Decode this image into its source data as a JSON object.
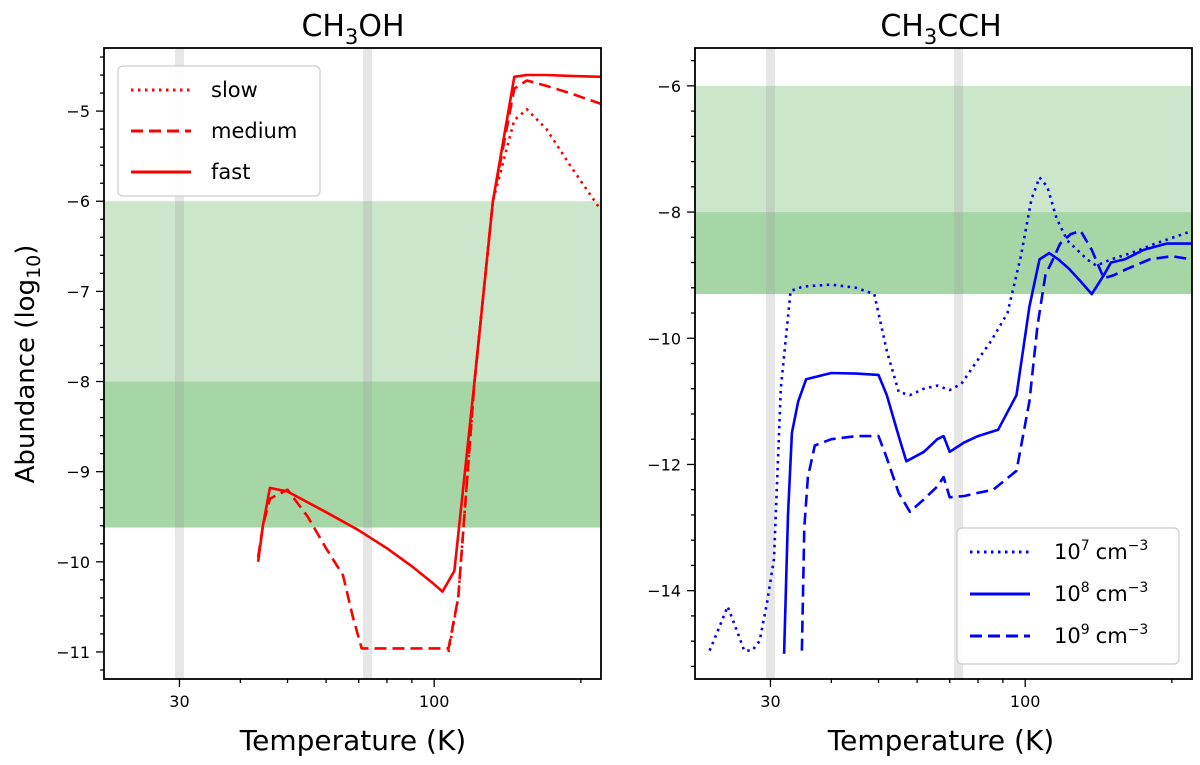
{
  "chart_data": [
    {
      "type": "line",
      "title": "CH3OH",
      "title_parts": [
        "CH",
        "3",
        "OH"
      ],
      "xlabel": "Temperature (K)",
      "ylabel": "Abundance (log",
      "ylabel_sub": "10",
      "ylabel_close": ")",
      "xscale": "log",
      "xlim": [
        21,
        220
      ],
      "ylim": [
        -11.3,
        -4.3
      ],
      "xticks": [
        30,
        100
      ],
      "xtick_labels": [
        "30",
        "100"
      ],
      "yticks": [
        -11,
        -10,
        -9,
        -8,
        -7,
        -6,
        -5
      ],
      "ytick_labels": [
        "−11",
        "−10",
        "−9",
        "−8",
        "−7",
        "−6",
        "−5"
      ],
      "vlines_x": [
        30,
        73
      ],
      "bands": [
        {
          "y0": -8.0,
          "y1": -6.0,
          "color": "#cce6cc"
        },
        {
          "y0": -9.62,
          "y1": -8.0,
          "color": "#a6d6a6"
        }
      ],
      "legend_position": "upper-left",
      "series": [
        {
          "name": "slow",
          "style": "dotted",
          "color": "#ff0000",
          "x": [
            107,
            112,
            121,
            132,
            146,
            155,
            170,
            190,
            220
          ],
          "y": [
            -11.0,
            -10.4,
            -8.0,
            -6.0,
            -5.1,
            -4.98,
            -5.2,
            -5.6,
            -6.1
          ]
        },
        {
          "name": "medium",
          "style": "dashed",
          "color": "#ff0000",
          "x": [
            43.5,
            44.5,
            46,
            50,
            55,
            60,
            65,
            68,
            71,
            107,
            112,
            121,
            132,
            146,
            155,
            170,
            190,
            220
          ],
          "y": [
            -9.95,
            -9.6,
            -9.3,
            -9.2,
            -9.5,
            -9.85,
            -10.15,
            -10.6,
            -10.96,
            -10.96,
            -10.4,
            -8.0,
            -6.0,
            -4.75,
            -4.66,
            -4.72,
            -4.8,
            -4.92
          ]
        },
        {
          "name": "fast",
          "style": "solid",
          "color": "#ff0000",
          "x": [
            43.5,
            44.5,
            46,
            50,
            60,
            70,
            80,
            90,
            100,
            104,
            110,
            121,
            132,
            146,
            155,
            170,
            190,
            220
          ],
          "y": [
            -10.0,
            -9.6,
            -9.18,
            -9.22,
            -9.45,
            -9.65,
            -9.85,
            -10.05,
            -10.25,
            -10.33,
            -10.1,
            -8.0,
            -6.0,
            -4.62,
            -4.6,
            -4.6,
            -4.61,
            -4.62
          ]
        }
      ]
    },
    {
      "type": "line",
      "title": "CH3CCH",
      "title_parts": [
        "CH",
        "3",
        "CCH"
      ],
      "xlabel": "Temperature (K)",
      "xscale": "log",
      "xlim": [
        21,
        220
      ],
      "ylim": [
        -15.4,
        -5.4
      ],
      "xticks": [
        30,
        100
      ],
      "xtick_labels": [
        "30",
        "100"
      ],
      "yticks": [
        -14,
        -12,
        -10,
        -8,
        -6
      ],
      "ytick_labels": [
        "−14",
        "−12",
        "−10",
        "−8",
        "−6"
      ],
      "vlines_x": [
        30,
        73
      ],
      "bands": [
        {
          "y0": -8.0,
          "y1": -6.0,
          "color": "#cce6cc"
        },
        {
          "y0": -9.3,
          "y1": -8.0,
          "color": "#a6d6a6"
        }
      ],
      "legend_position": "lower-right",
      "series": [
        {
          "name": "10^7 cm^-3",
          "label_base": "10",
          "label_exp": "7",
          "label_unit": "cm",
          "label_unit_exp": "−3",
          "style": "dotted",
          "color": "#0000ff",
          "x": [
            22.5,
            23.5,
            24.5,
            25.5,
            26.5,
            27.5,
            28.5,
            29.5,
            30.5,
            31.5,
            33,
            35,
            40,
            45,
            49,
            52,
            55,
            58,
            62,
            66,
            70,
            74,
            79,
            85,
            92,
            98,
            103,
            107,
            111,
            116,
            122,
            128,
            134,
            140,
            150,
            165,
            185,
            220
          ],
          "y": [
            -14.95,
            -14.6,
            -14.25,
            -14.6,
            -14.95,
            -14.95,
            -14.8,
            -14.2,
            -13.5,
            -10.8,
            -9.25,
            -9.18,
            -9.15,
            -9.2,
            -9.3,
            -10.2,
            -10.85,
            -10.9,
            -10.8,
            -10.75,
            -10.82,
            -10.72,
            -10.4,
            -10.05,
            -9.6,
            -8.7,
            -7.8,
            -7.45,
            -7.6,
            -8.1,
            -8.45,
            -8.6,
            -8.75,
            -8.85,
            -8.75,
            -8.65,
            -8.5,
            -8.3
          ]
        },
        {
          "name": "10^8 cm^-3",
          "label_base": "10",
          "label_exp": "8",
          "label_unit": "cm",
          "label_unit_exp": "−3",
          "style": "solid",
          "color": "#0000ff",
          "x": [
            32,
            32.6,
            33.2,
            34.2,
            35.5,
            40,
            45,
            50,
            52,
            55,
            57,
            62,
            66,
            68,
            70,
            75,
            80,
            88,
            96,
            102,
            107,
            112,
            117,
            123,
            130,
            137,
            145,
            150,
            160,
            175,
            195,
            220
          ],
          "y": [
            -15.0,
            -12.8,
            -11.5,
            -11.0,
            -10.65,
            -10.55,
            -10.56,
            -10.58,
            -10.9,
            -11.55,
            -11.95,
            -11.8,
            -11.6,
            -11.55,
            -11.8,
            -11.65,
            -11.55,
            -11.45,
            -10.9,
            -9.5,
            -8.75,
            -8.65,
            -8.75,
            -8.9,
            -9.1,
            -9.3,
            -9.0,
            -8.8,
            -8.75,
            -8.6,
            -8.5,
            -8.5
          ]
        },
        {
          "name": "10^9 cm^-3",
          "label_base": "10",
          "label_exp": "9",
          "label_unit": "cm",
          "label_unit_exp": "−3",
          "style": "dashed",
          "color": "#0000ff",
          "x": [
            34.8,
            35.2,
            35.8,
            37,
            40,
            45,
            50,
            52,
            55,
            58,
            62,
            66,
            68,
            70,
            75,
            80,
            86,
            96,
            102,
            106,
            110,
            114,
            118,
            124,
            130,
            137,
            145,
            152,
            162,
            180,
            200,
            220
          ],
          "y": [
            -14.95,
            -13.0,
            -12.2,
            -11.7,
            -11.6,
            -11.55,
            -11.55,
            -11.9,
            -12.45,
            -12.75,
            -12.55,
            -12.35,
            -12.2,
            -12.52,
            -12.5,
            -12.45,
            -12.4,
            -12.1,
            -11.0,
            -9.8,
            -9.0,
            -8.75,
            -8.5,
            -8.35,
            -8.3,
            -8.6,
            -9.05,
            -9.0,
            -8.9,
            -8.75,
            -8.7,
            -8.75
          ]
        }
      ]
    }
  ]
}
